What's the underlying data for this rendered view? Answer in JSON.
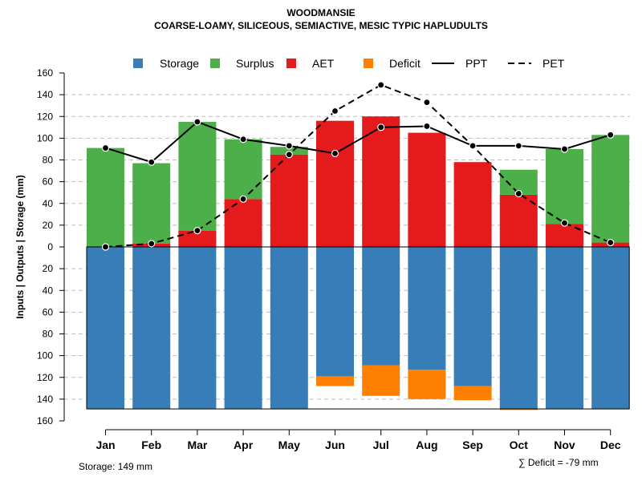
{
  "chart_data": {
    "type": "bar",
    "title": "WOODMANSIE",
    "subtitle": "COARSE-LOAMY, SILICEOUS, SEMIACTIVE, MESIC TYPIC HAPLUDULTS",
    "ylabel": "Inputs | Outputs | Storage    (mm)",
    "ylim": [
      -160,
      160
    ],
    "yticks": [
      160,
      140,
      120,
      100,
      80,
      60,
      40,
      20,
      0,
      20,
      40,
      60,
      80,
      100,
      120,
      140,
      160
    ],
    "categories": [
      "Jan",
      "Feb",
      "Mar",
      "Apr",
      "May",
      "Jun",
      "Jul",
      "Aug",
      "Sep",
      "Oct",
      "Nov",
      "Dec"
    ],
    "storage_capacity": 149,
    "series": [
      {
        "name": "Storage",
        "color": "#377EB8",
        "values": [
          149,
          149,
          149,
          149,
          149,
          119,
          109,
          113,
          128,
          149,
          149,
          149
        ]
      },
      {
        "name": "Surplus",
        "color": "#4DAF4A",
        "values": [
          91,
          74,
          100,
          55,
          7,
          0,
          0,
          0,
          0,
          23,
          69,
          99
        ]
      },
      {
        "name": "AET",
        "color": "#E41A1C",
        "values": [
          0,
          3,
          15,
          44,
          85,
          116,
          120,
          105,
          78,
          48,
          21,
          4
        ]
      },
      {
        "name": "Deficit",
        "color": "#FF7F00",
        "values": [
          0,
          0,
          0,
          0,
          0,
          9,
          28,
          27,
          13,
          1,
          0,
          0
        ]
      },
      {
        "name": "PPT",
        "color": "#000000",
        "values": [
          91,
          78,
          115,
          99,
          93,
          86,
          110,
          111,
          93,
          93,
          90,
          103
        ]
      },
      {
        "name": "PET",
        "color": "#000000",
        "values": [
          0,
          3,
          15,
          44,
          85,
          125,
          149,
          133,
          93,
          49,
          22,
          4
        ]
      }
    ],
    "legend_position": "top",
    "grid": true,
    "storage_label": "Storage: 149 mm",
    "deficit_label": "∑ Deficit = -79 mm"
  }
}
